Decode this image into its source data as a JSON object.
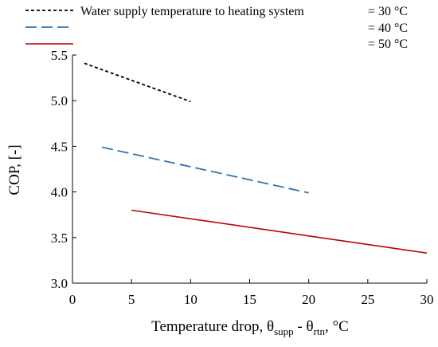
{
  "chart_data": {
    "type": "line",
    "xlabel": "Temperature drop, θsupp - θrtn, °C",
    "xlabel_parts": {
      "prefix": "Temperature drop, θ",
      "sub1": "supp",
      "mid": " - θ",
      "sub2": "rtn",
      "suffix": ", °C"
    },
    "ylabel": "COP, [-]",
    "xlim": [
      0,
      30
    ],
    "ylim": [
      3.0,
      5.5
    ],
    "xticks": [
      0,
      5,
      10,
      15,
      20,
      25,
      30
    ],
    "yticks": [
      3.0,
      3.5,
      4.0,
      4.5,
      5.0,
      5.5
    ],
    "xtick_labels": [
      "0",
      "5",
      "10",
      "15",
      "20",
      "25",
      "30"
    ],
    "ytick_labels": [
      "3.0",
      "3.5",
      "4.0",
      "4.5",
      "5.0",
      "5.5"
    ],
    "grid": false,
    "legend_title": "Water supply temperature to heating system",
    "legend_placement": "top",
    "series": [
      {
        "name": "= 30 °C",
        "color": "#000000",
        "dash": "dotted",
        "x": [
          1,
          10
        ],
        "y": [
          5.41,
          4.99
        ]
      },
      {
        "name": "= 40 °C",
        "color": "#2e75b6",
        "dash": "dashed",
        "x": [
          2.5,
          20
        ],
        "y": [
          4.49,
          3.99
        ]
      },
      {
        "name": "= 50 °C",
        "color": "#c00000",
        "dash": "solid",
        "x": [
          5,
          30
        ],
        "y": [
          3.8,
          3.33
        ]
      }
    ]
  }
}
